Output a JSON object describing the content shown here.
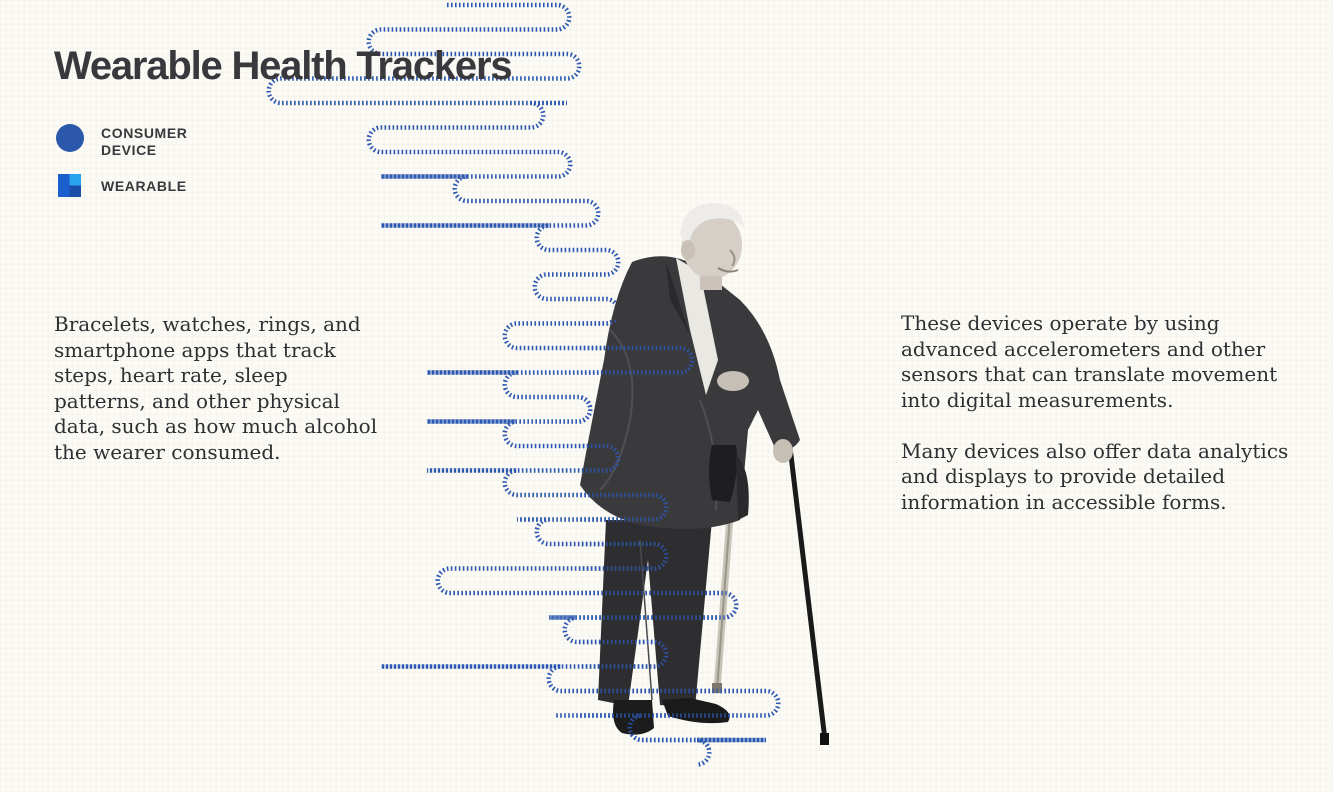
{
  "title": "Wearable Health Trackers",
  "legend": [
    {
      "label": "CONSUMER DEVICE",
      "shape": "circle",
      "color": "#2c58ac"
    },
    {
      "label": "WEARABLE",
      "shape": "split-square",
      "colors": [
        "#1b5fcf",
        "#2aa3ee"
      ]
    }
  ],
  "left_text": "Bracelets, watches, rings, and smartphone apps that track steps, heart rate, sleep patterns, and other physical data, such as how much alcohol the wearer consumed.",
  "right_text": [
    "These devices operate by using advanced accelerometers and other sensors that can translate movement into digital measurements.",
    "Many devices also offer data analytics and displays to provide detailed information in accessible forms."
  ],
  "colors": {
    "background": "#fbfaf5",
    "text": "#2f2f33",
    "accent_blue": "#2c58ac",
    "wave_blue": "#2b57b0"
  },
  "illustration": {
    "subject": "elderly-man-with-cane-photo",
    "decoration": "serpentine-dotted-blue-line"
  }
}
